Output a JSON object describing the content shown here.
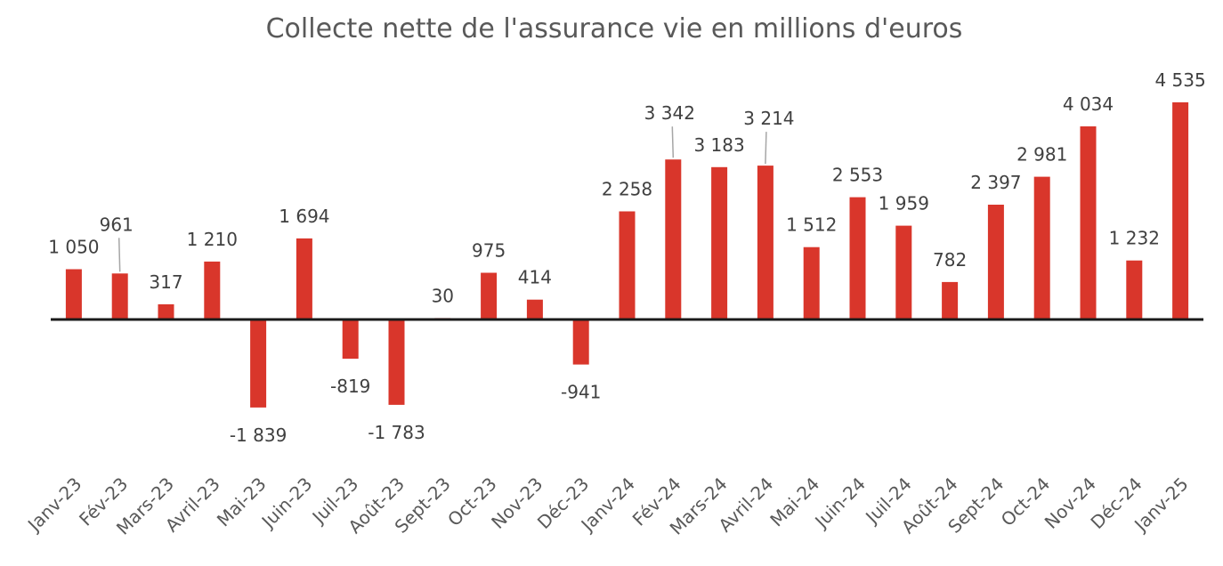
{
  "chart_data": {
    "type": "bar",
    "title": "Collecte nette de l'assurance vie en millions d'euros",
    "xlabel": "",
    "ylabel": "",
    "ylim": [
      -2500,
      5000
    ],
    "grid": false,
    "legend": "none",
    "categories": [
      "Janv-23",
      "Fév-23",
      "Mars-23",
      "Avril-23",
      "Mai-23",
      "Juin-23",
      "Juil-23",
      "Août-23",
      "Sept-23",
      "Oct-23",
      "Nov-23",
      "Déc-23",
      "Janv-24",
      "Fév-24",
      "Mars-24",
      "Avril-24",
      "Mai-24",
      "Juin-24",
      "Juil-24",
      "Août-24",
      "Sept-24",
      "Oct-24",
      "Nov-24",
      "Déc-24",
      "Janv-25"
    ],
    "values": [
      1050,
      961,
      317,
      1210,
      -1839,
      1694,
      -819,
      -1783,
      30,
      975,
      414,
      -941,
      2258,
      3342,
      3183,
      3214,
      1512,
      2553,
      1959,
      782,
      2397,
      2981,
      4034,
      1232,
      4535
    ],
    "data_labels": [
      "1 050",
      "961",
      "317",
      "1 210",
      "-1 839",
      "1 694",
      "-819",
      "-1 783",
      "30",
      "975",
      "414",
      "-941",
      "2 258",
      "3 342",
      "3 183",
      "3 214",
      "1 512",
      "2 553",
      "1 959",
      "782",
      "2 397",
      "2 981",
      "4 034",
      "1 232",
      "4 535"
    ],
    "colors": {
      "bar": "#d9362b",
      "axis": "#1a1a1a",
      "leader": "#a6a6a6"
    }
  }
}
